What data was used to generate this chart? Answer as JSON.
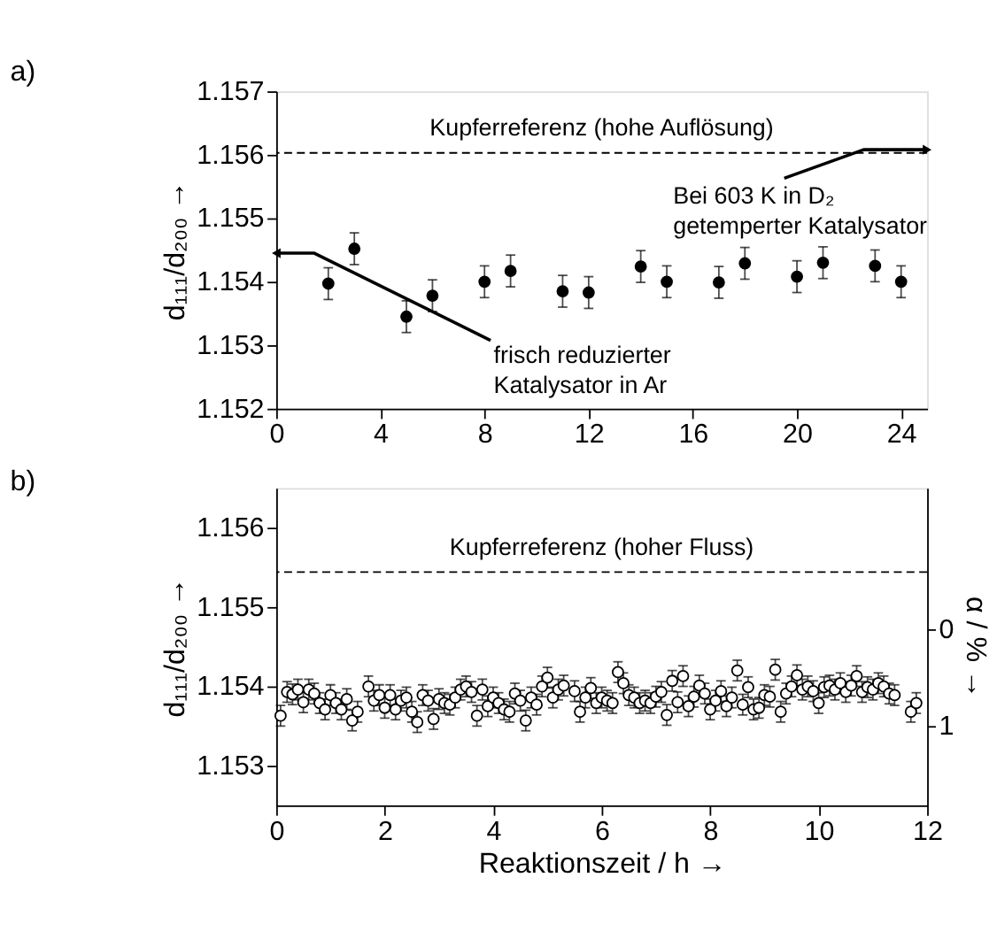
{
  "chart_data": [
    {
      "type": "scatter",
      "title": "a)",
      "ylabel": "d₁₁₁/d₂₀₀ →",
      "xlim": [
        0,
        25
      ],
      "xticks": [
        0,
        4,
        8,
        12,
        16,
        20,
        24
      ],
      "ylim": [
        1.152,
        1.157
      ],
      "yticks": [
        1.152,
        1.153,
        1.154,
        1.155,
        1.156,
        1.157
      ],
      "grid": false,
      "marker": "circle",
      "legend": false,
      "x": [
        2,
        3,
        5,
        6,
        8,
        9,
        11,
        12,
        14,
        15,
        17,
        18,
        20,
        21,
        23,
        24
      ],
      "series": [
        {
          "color": "#000000",
          "values": [
            1.15397,
            1.15452,
            1.15345,
            1.15378,
            1.154,
            1.15417,
            1.15385,
            1.15383,
            1.15424,
            1.154,
            1.15399,
            1.15429,
            1.15408,
            1.1543,
            1.15425,
            1.154
          ],
          "errors": [
            0.00025,
            0.00025,
            0.00025,
            0.00025,
            0.00025,
            0.00025,
            0.00025,
            0.00025,
            0.00025,
            0.00025,
            0.00025,
            0.00025,
            0.00025,
            0.00025,
            0.00025,
            0.00025
          ]
        }
      ],
      "ref_lines": [
        {
          "axis": "y",
          "value": 1.15603,
          "label": "Kupferreferenz (hohe Auflösung)",
          "line_style": "dashed"
        }
      ],
      "annotations": [
        {
          "text": "frisch reduzierter\nKatalysator in Ar",
          "x": 0,
          "y": 1.15445
        },
        {
          "text": "Bei 603 K in D₂\ngetemperter Katalysator",
          "x": 25,
          "y": 1.15608
        }
      ]
    },
    {
      "type": "scatter",
      "title": "b)",
      "xlabel": "Reaktionszeit / h →",
      "ylabel": "d₁₁₁/d₂₀₀ →",
      "y2label": "α / % →",
      "xlim": [
        0,
        12
      ],
      "xticks": [
        0,
        2,
        4,
        6,
        8,
        10,
        12
      ],
      "ylim": [
        1.1525,
        1.1565
      ],
      "yticks": [
        1.153,
        1.154,
        1.155,
        1.156
      ],
      "y2lim": [
        1.83,
        -1.47
      ],
      "y2ticks": [
        0,
        1
      ],
      "grid": false,
      "marker": "circle",
      "legend": false,
      "x": [
        0.08,
        0.2,
        0.3,
        0.4,
        0.5,
        0.6,
        0.7,
        0.8,
        0.9,
        1.0,
        1.1,
        1.2,
        1.3,
        1.4,
        1.5,
        1.7,
        1.8,
        1.9,
        2.0,
        2.1,
        2.2,
        2.3,
        2.4,
        2.5,
        2.6,
        2.7,
        2.8,
        2.9,
        3.0,
        3.1,
        3.2,
        3.3,
        3.4,
        3.5,
        3.6,
        3.7,
        3.8,
        3.9,
        4.0,
        4.1,
        4.2,
        4.3,
        4.4,
        4.5,
        4.6,
        4.7,
        4.8,
        4.9,
        5.0,
        5.1,
        5.2,
        5.3,
        5.5,
        5.6,
        5.7,
        5.8,
        5.9,
        6.0,
        6.1,
        6.2,
        6.3,
        6.4,
        6.5,
        6.6,
        6.7,
        6.8,
        6.9,
        7.0,
        7.1,
        7.2,
        7.3,
        7.4,
        7.5,
        7.6,
        7.7,
        7.8,
        7.9,
        8.0,
        8.1,
        8.2,
        8.3,
        8.4,
        8.5,
        8.6,
        8.7,
        8.8,
        8.9,
        9.0,
        9.1,
        9.2,
        9.3,
        9.4,
        9.5,
        9.6,
        9.7,
        9.8,
        9.9,
        10.0,
        10.1,
        10.2,
        10.3,
        10.4,
        10.5,
        10.6,
        10.7,
        10.8,
        10.9,
        11.0,
        11.1,
        11.2,
        11.3,
        11.4,
        11.7,
        11.8
      ],
      "series": [
        {
          "color": "#000000",
          "values": [
            1.15363,
            1.15393,
            1.1539,
            1.15396,
            1.1538,
            1.15396,
            1.15391,
            1.15379,
            1.15371,
            1.15389,
            1.15379,
            1.15371,
            1.15384,
            1.15357,
            1.15368,
            1.154,
            1.15382,
            1.15389,
            1.15373,
            1.15389,
            1.15371,
            1.15382,
            1.15386,
            1.15368,
            1.15355,
            1.15389,
            1.15382,
            1.15359,
            1.15384,
            1.15379,
            1.15377,
            1.15386,
            1.15396,
            1.154,
            1.15393,
            1.15363,
            1.15396,
            1.15375,
            1.15386,
            1.15379,
            1.15371,
            1.15368,
            1.15391,
            1.15382,
            1.15357,
            1.15386,
            1.15377,
            1.154,
            1.15411,
            1.15386,
            1.15396,
            1.15401,
            1.15394,
            1.15368,
            1.15386,
            1.15398,
            1.15379,
            1.15386,
            1.15382,
            1.15379,
            1.15418,
            1.15404,
            1.15389,
            1.15386,
            1.15379,
            1.15382,
            1.15379,
            1.15387,
            1.15393,
            1.15364,
            1.15407,
            1.1538,
            1.15413,
            1.15375,
            1.15387,
            1.15401,
            1.15391,
            1.15371,
            1.15382,
            1.15394,
            1.15375,
            1.15386,
            1.1542,
            1.15377,
            1.15399,
            1.15371,
            1.15373,
            1.15389,
            1.15387,
            1.15421,
            1.15368,
            1.15391,
            1.154,
            1.15414,
            1.15396,
            1.154,
            1.15394,
            1.15379,
            1.15399,
            1.15401,
            1.15396,
            1.15404,
            1.15393,
            1.15401,
            1.15413,
            1.15393,
            1.15399,
            1.15396,
            1.15404,
            1.154,
            1.15391,
            1.15389,
            1.15368,
            1.15379
          ],
          "errors": [
            0.00013,
            0.00013,
            0.00013,
            0.00013,
            0.00013,
            0.00013,
            0.00013,
            0.00013,
            0.00013,
            0.00013,
            0.00013,
            0.00013,
            0.00013,
            0.00013,
            0.00013,
            0.00013,
            0.00013,
            0.00013,
            0.00013,
            0.00013,
            0.00013,
            0.00013,
            0.00013,
            0.00013,
            0.00013,
            0.00013,
            0.00013,
            0.00013,
            0.00013,
            0.00013,
            0.00013,
            0.00013,
            0.00013,
            0.00013,
            0.00013,
            0.00013,
            0.00013,
            0.00013,
            0.00013,
            0.00013,
            0.00013,
            0.00013,
            0.00013,
            0.00013,
            0.00013,
            0.00013,
            0.00013,
            0.00013,
            0.00013,
            0.00013,
            0.00013,
            0.00013,
            0.00013,
            0.00013,
            0.00013,
            0.00013,
            0.00013,
            0.00013,
            0.00013,
            0.00013,
            0.00013,
            0.00013,
            0.00013,
            0.00013,
            0.00013,
            0.00013,
            0.00013,
            0.00013,
            0.00013,
            0.00013,
            0.00013,
            0.00013,
            0.00013,
            0.00013,
            0.00013,
            0.00013,
            0.00013,
            0.00013,
            0.00013,
            0.00013,
            0.00013,
            0.00013,
            0.00013,
            0.00013,
            0.00013,
            0.00013,
            0.00013,
            0.00013,
            0.00013,
            0.00013,
            0.00013,
            0.00013,
            0.00013,
            0.00013,
            0.00013,
            0.00013,
            0.00013,
            0.00013,
            0.00013,
            0.00013,
            0.00013,
            0.00013,
            0.00013,
            0.00013,
            0.00013,
            0.00013,
            0.00013,
            0.00013,
            0.00013,
            0.00013,
            0.00013,
            0.00013,
            0.00013,
            0.00013
          ]
        }
      ],
      "ref_lines": [
        {
          "axis": "y",
          "value": 1.15544,
          "label": "Kupferreferenz (hoher Fluss)",
          "line_style": "dashed"
        }
      ]
    }
  ]
}
